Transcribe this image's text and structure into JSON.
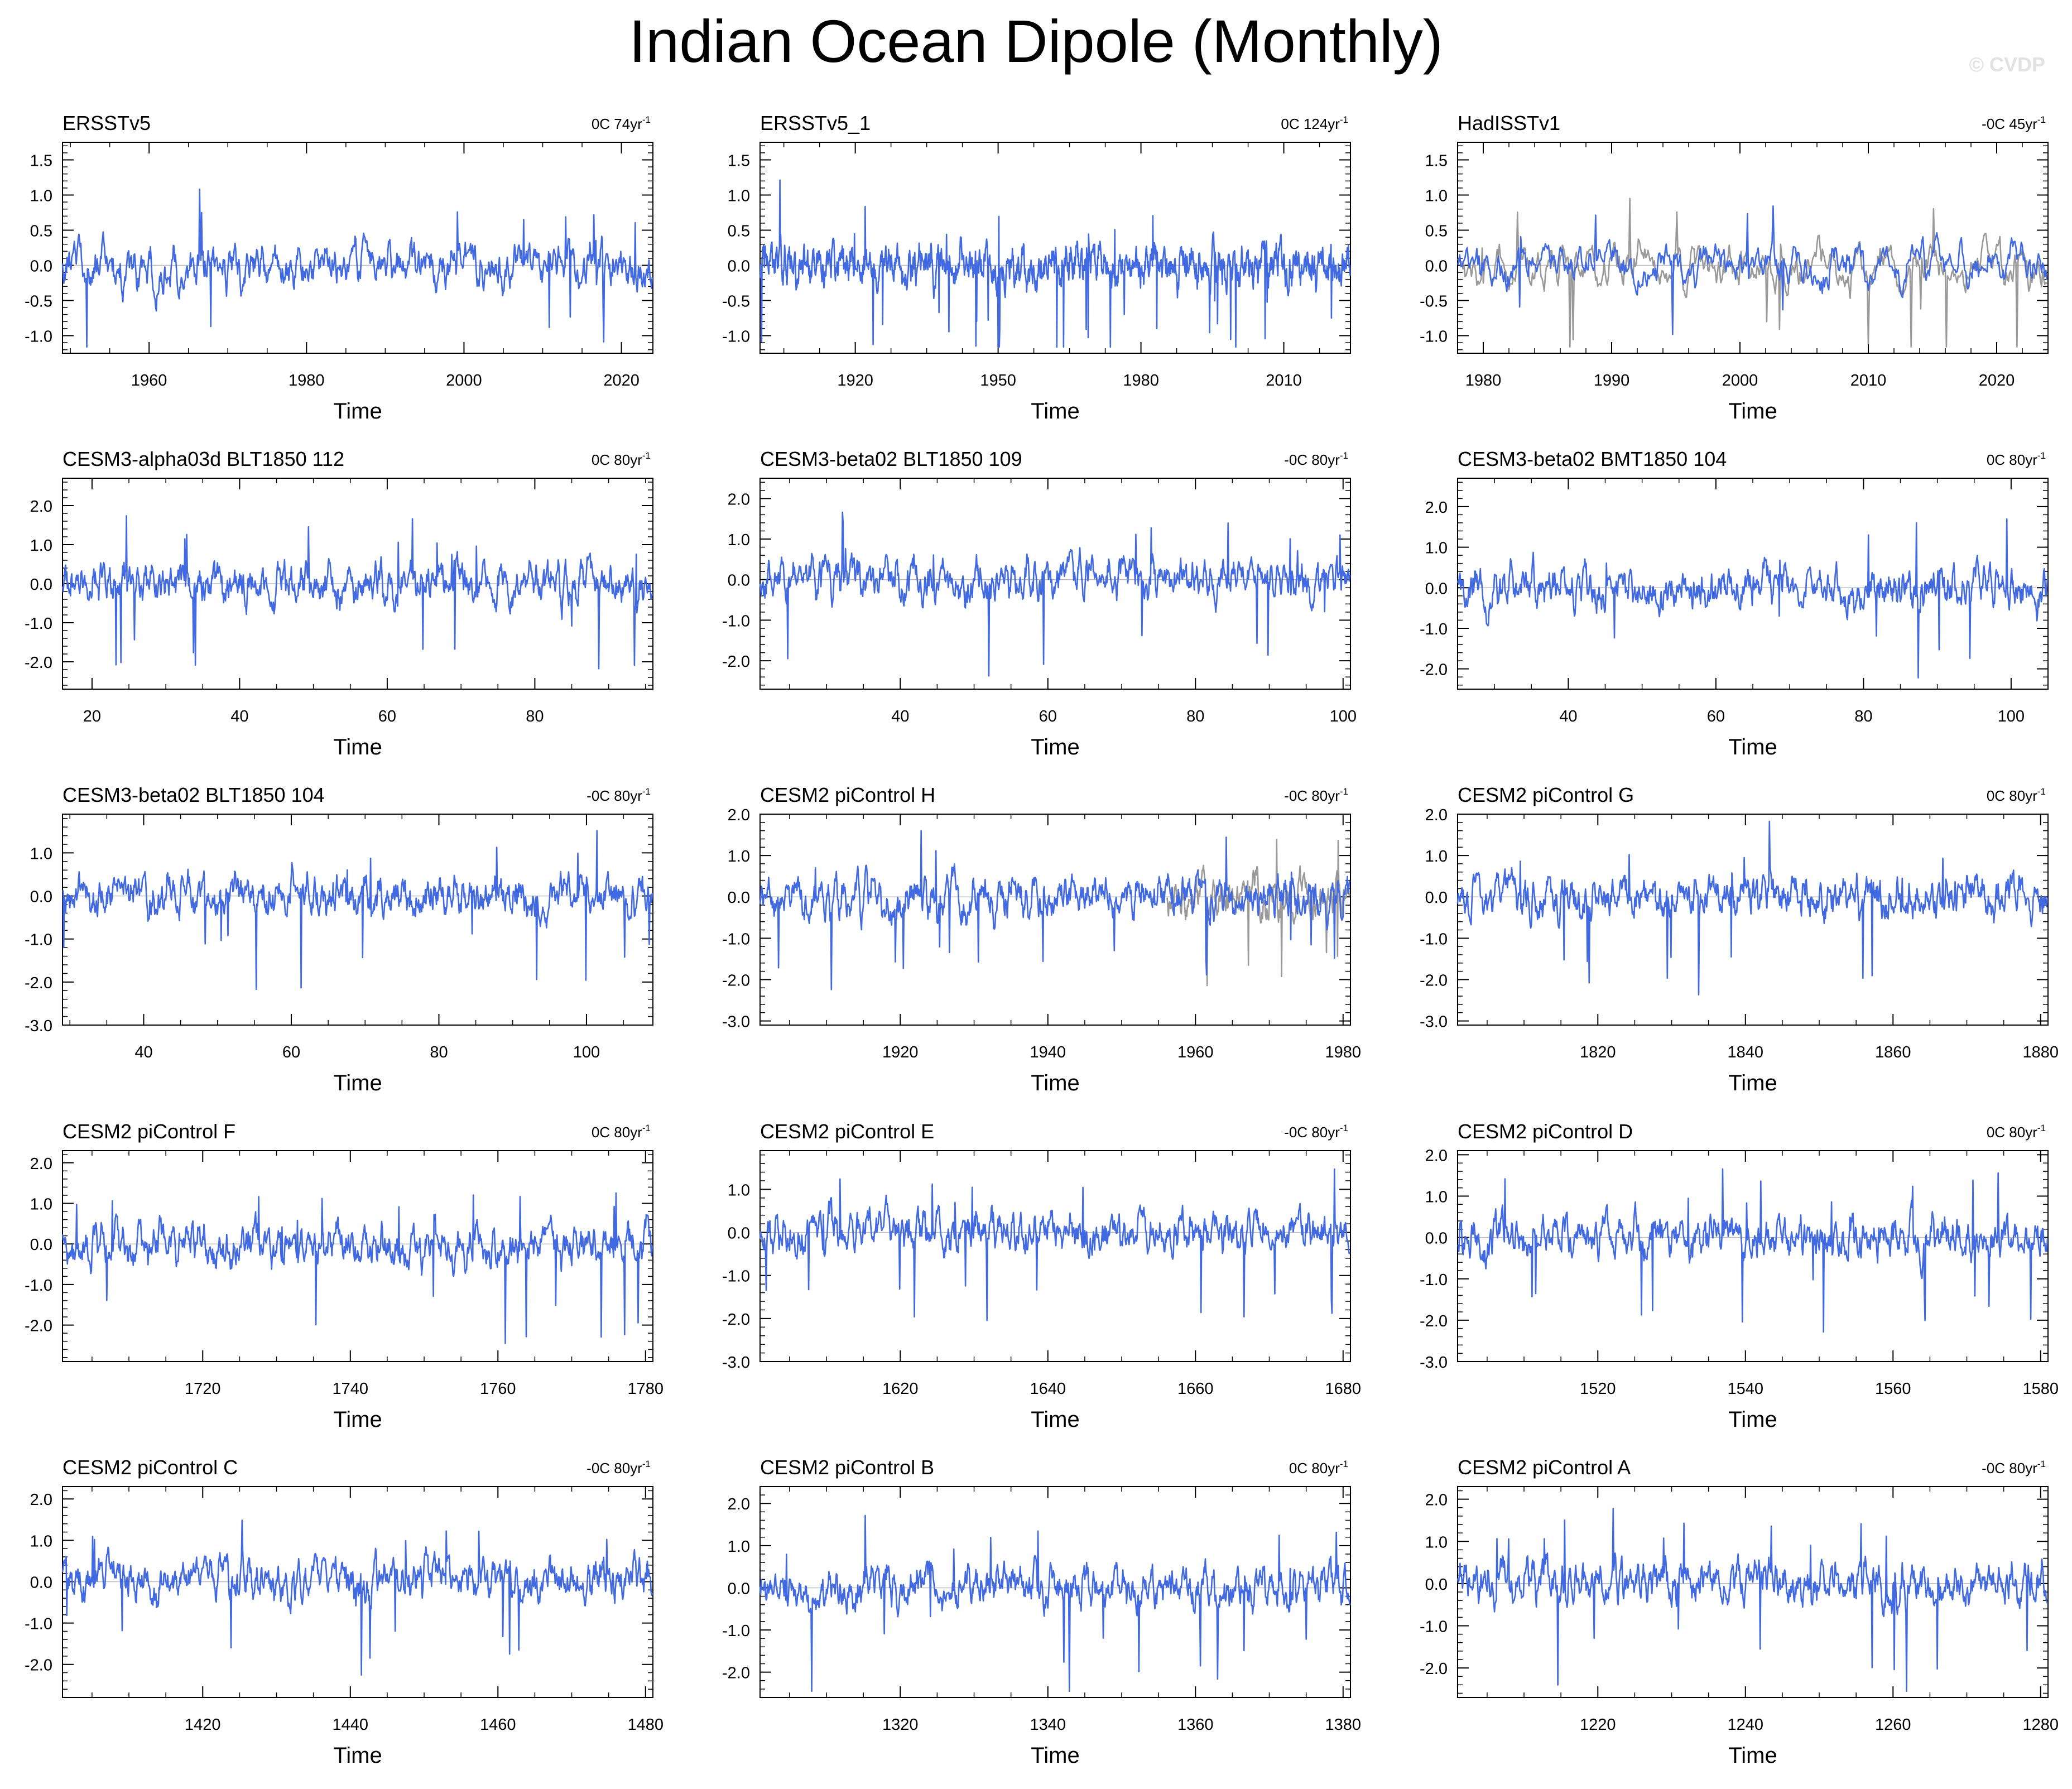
{
  "title": "Indian Ocean Dipole (Monthly)",
  "watermark": "© CVDP",
  "colors": {
    "series": "#4169e1",
    "overlay": "#999999",
    "zero_line": "#bbbbbb",
    "axis": "#000000"
  },
  "chart_data": [
    {
      "type": "line",
      "title": "ERSSTv5",
      "annotation": "0C 74yr",
      "annotation_sup": "-1",
      "xlabel": "Time",
      "ylabel": "",
      "xlim": [
        1949,
        2024
      ],
      "ylim": [
        -1.25,
        1.75
      ],
      "x_ticks": [
        1960,
        1980,
        2000,
        2020
      ],
      "y_ticks": [
        -1.0,
        -0.5,
        0.0,
        0.5,
        1.0,
        1.5
      ],
      "overlay": false,
      "grid": false,
      "legend": "none"
    },
    {
      "type": "line",
      "title": "ERSSTv5_1",
      "annotation": "0C 124yr",
      "annotation_sup": "-1",
      "xlabel": "Time",
      "ylabel": "",
      "xlim": [
        1900,
        2024
      ],
      "ylim": [
        -1.25,
        1.75
      ],
      "x_ticks": [
        1920,
        1950,
        1980,
        2010
      ],
      "y_ticks": [
        -1.0,
        -0.5,
        0.0,
        0.5,
        1.0,
        1.5
      ],
      "overlay": false,
      "grid": false,
      "legend": "none"
    },
    {
      "type": "line",
      "title": "HadISSTv1",
      "annotation": "-0C 45yr",
      "annotation_sup": "-1",
      "xlabel": "Time",
      "ylabel": "",
      "xlim": [
        1978,
        2024
      ],
      "ylim": [
        -1.25,
        1.75
      ],
      "x_ticks": [
        1980,
        1990,
        2000,
        2010,
        2020
      ],
      "y_ticks": [
        -1.0,
        -0.5,
        0.0,
        0.5,
        1.0,
        1.5
      ],
      "overlay": true,
      "grid": false,
      "legend": "none"
    },
    {
      "type": "line",
      "title": "CESM3-alpha03d BLT1850 112",
      "annotation": "0C 80yr",
      "annotation_sup": "-1",
      "xlabel": "Time",
      "ylabel": "",
      "xlim": [
        16,
        96
      ],
      "ylim": [
        -2.7,
        2.7
      ],
      "x_ticks": [
        20,
        40,
        60,
        80
      ],
      "y_ticks": [
        -2.0,
        -1.0,
        0.0,
        1.0,
        2.0
      ],
      "overlay": false,
      "grid": false,
      "legend": "none"
    },
    {
      "type": "line",
      "title": "CESM3-beta02 BLT1850 109",
      "annotation": "-0C 80yr",
      "annotation_sup": "-1",
      "xlabel": "Time",
      "ylabel": "",
      "xlim": [
        21,
        101
      ],
      "ylim": [
        -2.7,
        2.5
      ],
      "x_ticks": [
        40,
        60,
        80,
        100
      ],
      "y_ticks": [
        -2.0,
        -1.0,
        0.0,
        1.0,
        2.0
      ],
      "overlay": false,
      "grid": false,
      "legend": "none"
    },
    {
      "type": "line",
      "title": "CESM3-beta02 BMT1850 104",
      "annotation": "0C 80yr",
      "annotation_sup": "-1",
      "xlabel": "Time",
      "ylabel": "",
      "xlim": [
        25,
        105
      ],
      "ylim": [
        -2.5,
        2.7
      ],
      "x_ticks": [
        40,
        60,
        80,
        100
      ],
      "y_ticks": [
        -2.0,
        -1.0,
        0.0,
        1.0,
        2.0
      ],
      "overlay": false,
      "grid": false,
      "legend": "none"
    },
    {
      "type": "line",
      "title": "CESM3-beta02 BLT1850 104",
      "annotation": "-0C 80yr",
      "annotation_sup": "-1",
      "xlabel": "Time",
      "ylabel": "",
      "xlim": [
        29,
        109
      ],
      "ylim": [
        -3.0,
        1.9
      ],
      "x_ticks": [
        40,
        60,
        80,
        100
      ],
      "y_ticks": [
        -3.0,
        -2.0,
        -1.0,
        0.0,
        1.0
      ],
      "overlay": false,
      "grid": false,
      "legend": "none"
    },
    {
      "type": "line",
      "title": "CESM2 piControl H",
      "annotation": "-0C 80yr",
      "annotation_sup": "-1",
      "xlabel": "Time",
      "ylabel": "",
      "xlim": [
        1901,
        1981
      ],
      "ylim": [
        -3.1,
        2.0
      ],
      "x_ticks": [
        1920,
        1940,
        1960,
        1980
      ],
      "y_ticks": [
        -3.0,
        -2.0,
        -1.0,
        0.0,
        1.0,
        2.0
      ],
      "overlay": true,
      "grid": false,
      "legend": "none"
    },
    {
      "type": "line",
      "title": "CESM2 piControl G",
      "annotation": "0C 80yr",
      "annotation_sup": "-1",
      "xlabel": "Time",
      "ylabel": "",
      "xlim": [
        1801,
        1881
      ],
      "ylim": [
        -3.1,
        2.0
      ],
      "x_ticks": [
        1820,
        1840,
        1860,
        1880
      ],
      "y_ticks": [
        -3.0,
        -2.0,
        -1.0,
        0.0,
        1.0,
        2.0
      ],
      "overlay": false,
      "grid": false,
      "legend": "none"
    },
    {
      "type": "line",
      "title": "CESM2 piControl F",
      "annotation": "0C 80yr",
      "annotation_sup": "-1",
      "xlabel": "Time",
      "ylabel": "",
      "xlim": [
        1701,
        1781
      ],
      "ylim": [
        -2.9,
        2.3
      ],
      "x_ticks": [
        1720,
        1740,
        1760,
        1780
      ],
      "y_ticks": [
        -2.0,
        -1.0,
        0.0,
        1.0,
        2.0
      ],
      "overlay": false,
      "grid": false,
      "legend": "none"
    },
    {
      "type": "line",
      "title": "CESM2 piControl E",
      "annotation": "-0C 80yr",
      "annotation_sup": "-1",
      "xlabel": "Time",
      "ylabel": "",
      "xlim": [
        1601,
        1681
      ],
      "ylim": [
        -3.0,
        1.9
      ],
      "x_ticks": [
        1620,
        1640,
        1660,
        1680
      ],
      "y_ticks": [
        -3.0,
        -2.0,
        -1.0,
        0.0,
        1.0
      ],
      "overlay": false,
      "grid": false,
      "legend": "none"
    },
    {
      "type": "line",
      "title": "CESM2 piControl D",
      "annotation": "0C 80yr",
      "annotation_sup": "-1",
      "xlabel": "Time",
      "ylabel": "",
      "xlim": [
        1501,
        1581
      ],
      "ylim": [
        -3.0,
        2.1
      ],
      "x_ticks": [
        1520,
        1540,
        1560,
        1580
      ],
      "y_ticks": [
        -3.0,
        -2.0,
        -1.0,
        0.0,
        1.0,
        2.0
      ],
      "overlay": false,
      "grid": false,
      "legend": "none"
    },
    {
      "type": "line",
      "title": "CESM2 piControl C",
      "annotation": "-0C 80yr",
      "annotation_sup": "-1",
      "xlabel": "Time",
      "ylabel": "",
      "xlim": [
        1401,
        1481
      ],
      "ylim": [
        -2.8,
        2.3
      ],
      "x_ticks": [
        1420,
        1440,
        1460,
        1480
      ],
      "y_ticks": [
        -2.0,
        -1.0,
        0.0,
        1.0,
        2.0
      ],
      "overlay": false,
      "grid": false,
      "legend": "none"
    },
    {
      "type": "line",
      "title": "CESM2 piControl B",
      "annotation": "0C 80yr",
      "annotation_sup": "-1",
      "xlabel": "Time",
      "ylabel": "",
      "xlim": [
        1301,
        1381
      ],
      "ylim": [
        -2.6,
        2.4
      ],
      "x_ticks": [
        1320,
        1340,
        1360,
        1380
      ],
      "y_ticks": [
        -2.0,
        -1.0,
        0.0,
        1.0,
        2.0
      ],
      "overlay": false,
      "grid": false,
      "legend": "none"
    },
    {
      "type": "line",
      "title": "CESM2 piControl A",
      "annotation": "-0C 80yr",
      "annotation_sup": "-1",
      "xlabel": "Time",
      "ylabel": "",
      "xlim": [
        1201,
        1281
      ],
      "ylim": [
        -2.7,
        2.3
      ],
      "x_ticks": [
        1220,
        1240,
        1260,
        1280
      ],
      "y_ticks": [
        -2.0,
        -1.0,
        0.0,
        1.0,
        2.0
      ],
      "overlay": false,
      "grid": false,
      "legend": "none"
    }
  ]
}
